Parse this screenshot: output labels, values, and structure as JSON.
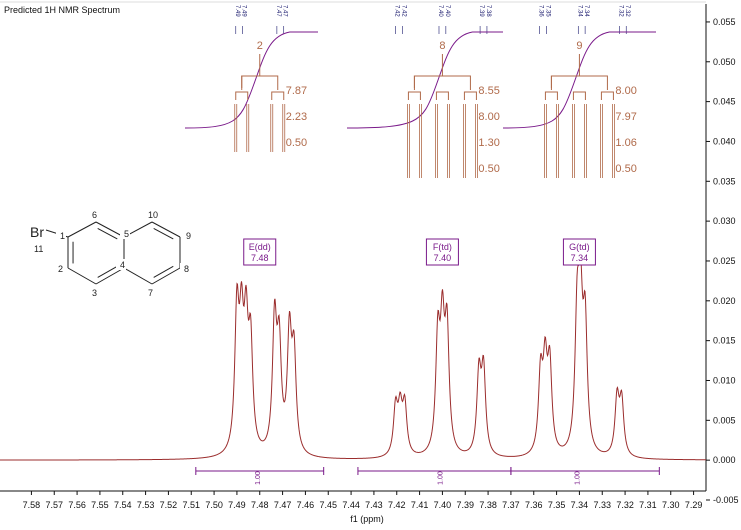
{
  "title": "Predicted 1H NMR Spectrum",
  "chart_data": {
    "type": "line",
    "title": "Predicted 1H NMR Spectrum",
    "xlabel": "f1 (ppm)",
    "ylabel": "",
    "xlim": [
      7.585,
      7.285
    ],
    "ylim": [
      -0.005,
      0.057
    ],
    "x_ticks": [
      "7.58",
      "7.57",
      "7.56",
      "7.55",
      "7.54",
      "7.53",
      "7.52",
      "7.51",
      "7.50",
      "7.49",
      "7.48",
      "7.47",
      "7.46",
      "7.45",
      "7.44",
      "7.43",
      "7.42",
      "7.41",
      "7.40",
      "7.39",
      "7.38",
      "7.37",
      "7.36",
      "7.35",
      "7.34",
      "7.33",
      "7.32",
      "7.31",
      "7.30",
      "7.29"
    ],
    "y_ticks": [
      "-0.005",
      "0.000",
      "0.005",
      "0.010",
      "0.015",
      "0.020",
      "0.025",
      "0.030",
      "0.035",
      "0.040",
      "0.045",
      "0.050",
      "0.055"
    ],
    "peaks": [
      {
        "x": 7.49,
        "h": 0.0172
      },
      {
        "x": 7.488,
        "h": 0.014
      },
      {
        "x": 7.486,
        "h": 0.0142
      },
      {
        "x": 7.484,
        "h": 0.013
      },
      {
        "x": 7.4735,
        "h": 0.0162
      },
      {
        "x": 7.4715,
        "h": 0.0128
      },
      {
        "x": 7.467,
        "h": 0.0145
      },
      {
        "x": 7.465,
        "h": 0.012
      },
      {
        "x": 7.4205,
        "h": 0.006
      },
      {
        "x": 7.4185,
        "h": 0.0055
      },
      {
        "x": 7.4165,
        "h": 0.0062
      },
      {
        "x": 7.402,
        "h": 0.014
      },
      {
        "x": 7.4,
        "h": 0.0145
      },
      {
        "x": 7.398,
        "h": 0.015
      },
      {
        "x": 7.384,
        "h": 0.01
      },
      {
        "x": 7.382,
        "h": 0.0105
      },
      {
        "x": 7.357,
        "h": 0.0098
      },
      {
        "x": 7.355,
        "h": 0.0104
      },
      {
        "x": 7.353,
        "h": 0.0108
      },
      {
        "x": 7.341,
        "h": 0.016
      },
      {
        "x": 7.3395,
        "h": 0.0165
      },
      {
        "x": 7.3375,
        "h": 0.0155
      },
      {
        "x": 7.3235,
        "h": 0.0072
      },
      {
        "x": 7.3215,
        "h": 0.0068
      }
    ],
    "peak_width": 0.0011,
    "peak_labels": [
      "7.49",
      "7.49",
      "7.47",
      "7.47",
      "7.42",
      "7.42",
      "7.40",
      "7.40",
      "7.39",
      "7.38",
      "7.36",
      "7.35",
      "7.34",
      "7.34",
      "7.32",
      "7.32"
    ],
    "multiplets": [
      {
        "name": "E(dd)",
        "shift": "7.48",
        "x": 7.48,
        "integral": "1.00",
        "range": [
          7.508,
          7.452
        ],
        "count": "2",
        "j": [
          "7.87",
          "2.23",
          "0.50"
        ]
      },
      {
        "name": "F(td)",
        "shift": "7.40",
        "x": 7.4,
        "integral": "1.00",
        "range": [
          7.437,
          7.37
        ],
        "count": "8",
        "j": [
          "8.55",
          "8.00",
          "1.30",
          "0.50"
        ]
      },
      {
        "name": "G(td)",
        "shift": "7.34",
        "x": 7.34,
        "integral": "1.00",
        "range": [
          7.37,
          7.305
        ],
        "count": "9",
        "j": [
          "8.00",
          "7.97",
          "1.06",
          "0.50"
        ]
      }
    ]
  },
  "molecule": {
    "substituent": "Br",
    "substituent_number": "11",
    "atom_numbers": [
      "1",
      "2",
      "3",
      "4",
      "5",
      "6",
      "7",
      "8",
      "9",
      "10"
    ]
  }
}
